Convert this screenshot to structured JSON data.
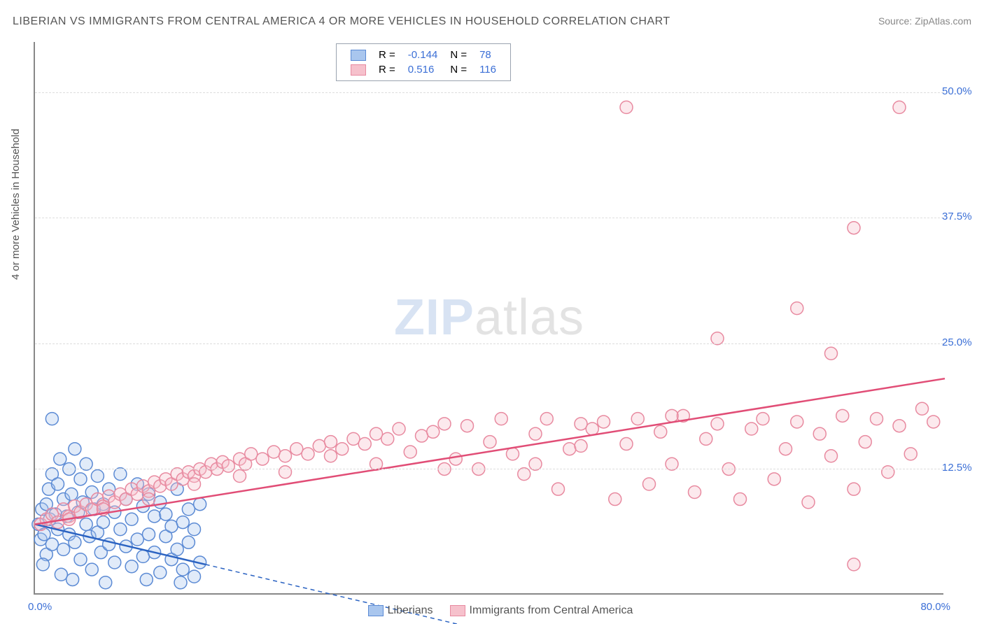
{
  "title": "LIBERIAN VS IMMIGRANTS FROM CENTRAL AMERICA 4 OR MORE VEHICLES IN HOUSEHOLD CORRELATION CHART",
  "source_prefix": "Source: ",
  "source_name": "ZipAtlas.com",
  "ylabel": "4 or more Vehicles in Household",
  "watermark_a": "ZIP",
  "watermark_b": "atlas",
  "chart": {
    "type": "scatter",
    "xlim": [
      0,
      80
    ],
    "ylim": [
      0,
      55
    ],
    "x_tick_left": "0.0%",
    "x_tick_right": "80.0%",
    "y_ticks": [
      {
        "v": 12.5,
        "label": "12.5%"
      },
      {
        "v": 25.0,
        "label": "25.0%"
      },
      {
        "v": 37.5,
        "label": "37.5%"
      },
      {
        "v": 50.0,
        "label": "50.0%"
      }
    ],
    "grid_color": "#dddddd",
    "axis_color": "#888888",
    "background_color": "#ffffff",
    "marker_radius": 9,
    "marker_stroke_width": 1.5,
    "marker_opacity": 0.35,
    "trend_line_width": 2.5,
    "trend_dash_width": 1.5
  },
  "series": [
    {
      "name": "Liberians",
      "color_fill": "#a9c6ee",
      "color_stroke": "#5b8ad4",
      "line_color": "#2b63c2",
      "R": "-0.144",
      "N": "78",
      "trend": {
        "x1": 0,
        "y1": 7.0,
        "x2": 15,
        "y2": 3.0,
        "extrap_x2": 40,
        "extrap_y2": -3.7
      },
      "points": [
        [
          0.3,
          7
        ],
        [
          0.5,
          5.5
        ],
        [
          0.6,
          8.5
        ],
        [
          0.8,
          6
        ],
        [
          1,
          9
        ],
        [
          1,
          4
        ],
        [
          1.2,
          10.5
        ],
        [
          1.3,
          7.5
        ],
        [
          1.5,
          12
        ],
        [
          1.5,
          5
        ],
        [
          1.8,
          8
        ],
        [
          2,
          11
        ],
        [
          2,
          6.5
        ],
        [
          2.2,
          13.5
        ],
        [
          2.5,
          9.5
        ],
        [
          2.5,
          4.5
        ],
        [
          2.8,
          7.8
        ],
        [
          3,
          12.5
        ],
        [
          3,
          6
        ],
        [
          3.2,
          10
        ],
        [
          3.5,
          14.5
        ],
        [
          3.5,
          5.2
        ],
        [
          3.8,
          8.2
        ],
        [
          4,
          11.5
        ],
        [
          4,
          3.5
        ],
        [
          4.2,
          9.2
        ],
        [
          4.5,
          7
        ],
        [
          4.5,
          13
        ],
        [
          4.8,
          5.8
        ],
        [
          5,
          10.2
        ],
        [
          5,
          2.5
        ],
        [
          5.2,
          8.5
        ],
        [
          5.5,
          6.2
        ],
        [
          5.5,
          11.8
        ],
        [
          5.8,
          4.2
        ],
        [
          6,
          9
        ],
        [
          6,
          7.2
        ],
        [
          6.5,
          5
        ],
        [
          6.5,
          10.5
        ],
        [
          7,
          3.2
        ],
        [
          7,
          8.2
        ],
        [
          7.5,
          6.5
        ],
        [
          7.5,
          12
        ],
        [
          8,
          4.8
        ],
        [
          8,
          9.5
        ],
        [
          8.5,
          2.8
        ],
        [
          8.5,
          7.5
        ],
        [
          9,
          5.5
        ],
        [
          9,
          11
        ],
        [
          9.5,
          3.8
        ],
        [
          9.5,
          8.8
        ],
        [
          10,
          6
        ],
        [
          10,
          10
        ],
        [
          10.5,
          4.2
        ],
        [
          10.5,
          7.8
        ],
        [
          11,
          2.2
        ],
        [
          11,
          9.2
        ],
        [
          11.5,
          5.8
        ],
        [
          11.5,
          8
        ],
        [
          12,
          3.5
        ],
        [
          12,
          6.8
        ],
        [
          12.5,
          10.5
        ],
        [
          12.5,
          4.5
        ],
        [
          13,
          7.2
        ],
        [
          13,
          2.5
        ],
        [
          13.5,
          8.5
        ],
        [
          13.5,
          5.2
        ],
        [
          14,
          1.8
        ],
        [
          14,
          6.5
        ],
        [
          14.5,
          9
        ],
        [
          14.5,
          3.2
        ],
        [
          1.5,
          17.5
        ],
        [
          0.7,
          3
        ],
        [
          2.3,
          2
        ],
        [
          3.3,
          1.5
        ],
        [
          6.2,
          1.2
        ],
        [
          9.8,
          1.5
        ],
        [
          12.8,
          1.2
        ]
      ]
    },
    {
      "name": "Immigrants from Central America",
      "color_fill": "#f6c1cc",
      "color_stroke": "#e88aa0",
      "line_color": "#e14d76",
      "R": "0.516",
      "N": "116",
      "trend": {
        "x1": 0,
        "y1": 7.0,
        "x2": 80,
        "y2": 21.5
      },
      "points": [
        [
          0.5,
          7
        ],
        [
          1,
          7.5
        ],
        [
          1.5,
          8
        ],
        [
          2,
          7.2
        ],
        [
          2.5,
          8.5
        ],
        [
          3,
          7.8
        ],
        [
          3.5,
          8.8
        ],
        [
          4,
          8.2
        ],
        [
          4.5,
          9
        ],
        [
          5,
          8.5
        ],
        [
          5.5,
          9.5
        ],
        [
          6,
          8.8
        ],
        [
          6.5,
          9.8
        ],
        [
          7,
          9.2
        ],
        [
          7.5,
          10
        ],
        [
          8,
          9.5
        ],
        [
          8.5,
          10.5
        ],
        [
          9,
          10
        ],
        [
          9.5,
          10.8
        ],
        [
          10,
          10.3
        ],
        [
          10.5,
          11.2
        ],
        [
          11,
          10.8
        ],
        [
          11.5,
          11.5
        ],
        [
          12,
          11
        ],
        [
          12.5,
          12
        ],
        [
          13,
          11.5
        ],
        [
          13.5,
          12.2
        ],
        [
          14,
          11.8
        ],
        [
          14.5,
          12.5
        ],
        [
          15,
          12.2
        ],
        [
          15.5,
          13
        ],
        [
          16,
          12.5
        ],
        [
          16.5,
          13.2
        ],
        [
          17,
          12.8
        ],
        [
          18,
          13.5
        ],
        [
          18.5,
          13
        ],
        [
          19,
          14
        ],
        [
          20,
          13.5
        ],
        [
          21,
          14.2
        ],
        [
          22,
          13.8
        ],
        [
          23,
          14.5
        ],
        [
          24,
          14
        ],
        [
          25,
          14.8
        ],
        [
          26,
          15.2
        ],
        [
          27,
          14.5
        ],
        [
          28,
          15.5
        ],
        [
          29,
          15
        ],
        [
          30,
          16
        ],
        [
          31,
          15.5
        ],
        [
          32,
          16.5
        ],
        [
          33,
          14.2
        ],
        [
          34,
          15.8
        ],
        [
          35,
          16.2
        ],
        [
          36,
          17
        ],
        [
          37,
          13.5
        ],
        [
          38,
          16.8
        ],
        [
          39,
          12.5
        ],
        [
          40,
          15.2
        ],
        [
          41,
          17.5
        ],
        [
          42,
          14
        ],
        [
          43,
          12
        ],
        [
          44,
          16
        ],
        [
          45,
          17.5
        ],
        [
          46,
          10.5
        ],
        [
          47,
          14.5
        ],
        [
          48,
          17
        ],
        [
          49,
          16.5
        ],
        [
          50,
          17.2
        ],
        [
          51,
          9.5
        ],
        [
          52,
          15
        ],
        [
          52,
          48.5
        ],
        [
          53,
          17.5
        ],
        [
          54,
          11
        ],
        [
          55,
          16.2
        ],
        [
          56,
          13
        ],
        [
          57,
          17.8
        ],
        [
          58,
          10.2
        ],
        [
          59,
          15.5
        ],
        [
          60,
          25.5
        ],
        [
          60,
          17
        ],
        [
          61,
          12.5
        ],
        [
          62,
          9.5
        ],
        [
          63,
          16.5
        ],
        [
          64,
          17.5
        ],
        [
          65,
          11.5
        ],
        [
          66,
          14.5
        ],
        [
          67,
          28.5
        ],
        [
          67,
          17.2
        ],
        [
          68,
          9.2
        ],
        [
          69,
          16
        ],
        [
          70,
          24
        ],
        [
          70,
          13.8
        ],
        [
          71,
          17.8
        ],
        [
          72,
          36.5
        ],
        [
          72,
          10.5
        ],
        [
          73,
          15.2
        ],
        [
          74,
          17.5
        ],
        [
          75,
          12.2
        ],
        [
          76,
          48.5
        ],
        [
          76,
          16.8
        ],
        [
          77,
          14
        ],
        [
          78,
          18.5
        ],
        [
          79,
          17.2
        ],
        [
          72,
          3
        ],
        [
          56,
          17.8
        ],
        [
          48,
          14.8
        ],
        [
          44,
          13
        ],
        [
          36,
          12.5
        ],
        [
          30,
          13
        ],
        [
          26,
          13.8
        ],
        [
          22,
          12.2
        ],
        [
          18,
          11.8
        ],
        [
          14,
          11
        ],
        [
          10,
          9.5
        ],
        [
          6,
          8.5
        ],
        [
          3,
          7.5
        ]
      ]
    }
  ],
  "legend_top_labels": {
    "R": "R =",
    "N": "N ="
  },
  "legend_bottom": [
    {
      "name": "Liberians",
      "fill": "#a9c6ee",
      "stroke": "#5b8ad4"
    },
    {
      "name": "Immigrants from Central America",
      "fill": "#f6c1cc",
      "stroke": "#e88aa0"
    }
  ]
}
